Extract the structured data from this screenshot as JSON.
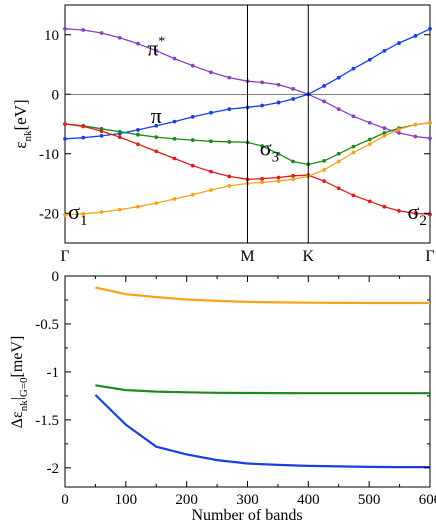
{
  "chart_data": [
    {
      "type": "line",
      "ylabel_main": "ε",
      "ylabel_sub": "nk",
      "ylabel_unit": "[eV]",
      "ylim": [
        -25,
        15
      ],
      "yticks": [
        10,
        0,
        -10,
        -20
      ],
      "grid": false,
      "kpoints": [
        {
          "label": "Γ",
          "x": 0.0
        },
        {
          "label": "M",
          "x": 1.0
        },
        {
          "label": "K",
          "x": 1.333
        },
        {
          "label": "Γ",
          "x": 2.0
        }
      ],
      "series": [
        {
          "name": "π*",
          "color": "#8e3fc1",
          "x": [
            0,
            0.1,
            0.2,
            0.3,
            0.4,
            0.5,
            0.6,
            0.7,
            0.8,
            0.9,
            1.0,
            1.08,
            1.17,
            1.25,
            1.333,
            1.42,
            1.5,
            1.58,
            1.67,
            1.75,
            1.83,
            1.92,
            2.0
          ],
          "y": [
            11,
            10.8,
            10.3,
            9.5,
            8.5,
            7.3,
            6.0,
            4.8,
            3.7,
            2.8,
            2.2,
            2.0,
            1.6,
            0.9,
            0.0,
            -1.2,
            -2.5,
            -3.7,
            -4.8,
            -5.7,
            -6.5,
            -7.1,
            -7.4
          ]
        },
        {
          "name": "π",
          "color": "#1a3fe0",
          "x": [
            0,
            0.1,
            0.2,
            0.3,
            0.4,
            0.5,
            0.6,
            0.7,
            0.8,
            0.9,
            1.0,
            1.08,
            1.17,
            1.25,
            1.333,
            1.42,
            1.5,
            1.58,
            1.67,
            1.75,
            1.83,
            1.92,
            2.0
          ],
          "y": [
            -7.5,
            -7.3,
            -7.0,
            -6.6,
            -6.0,
            -5.3,
            -4.6,
            -3.8,
            -3.1,
            -2.5,
            -2.2,
            -1.9,
            -1.4,
            -0.8,
            0.0,
            1.4,
            2.8,
            4.3,
            5.8,
            7.3,
            8.6,
            9.8,
            11.0
          ]
        },
        {
          "name": "σ3",
          "color": "#1e8a1e",
          "x": [
            0,
            0.1,
            0.2,
            0.3,
            0.4,
            0.5,
            0.6,
            0.7,
            0.8,
            0.9,
            1.0,
            1.08,
            1.17,
            1.25,
            1.333,
            1.42,
            1.5,
            1.58,
            1.67,
            1.75,
            1.83,
            1.92,
            2.0
          ],
          "y": [
            -5.0,
            -5.3,
            -5.8,
            -6.3,
            -6.8,
            -7.2,
            -7.5,
            -7.7,
            -7.9,
            -8.0,
            -8.1,
            -8.7,
            -10.0,
            -11.3,
            -11.8,
            -11.2,
            -10.0,
            -8.8,
            -7.6,
            -6.5,
            -5.7,
            -5.1,
            -4.8
          ]
        },
        {
          "name": "red band",
          "color": "#e01b1b",
          "x": [
            0,
            0.1,
            0.2,
            0.3,
            0.4,
            0.5,
            0.6,
            0.7,
            0.8,
            0.9,
            1.0,
            1.08,
            1.17,
            1.25,
            1.333,
            1.42,
            1.5,
            1.58,
            1.67,
            1.75,
            1.83,
            1.92,
            2.0
          ],
          "y": [
            -5.0,
            -5.4,
            -6.2,
            -7.2,
            -8.4,
            -9.6,
            -10.8,
            -12.0,
            -13.0,
            -13.8,
            -14.3,
            -14.2,
            -14.0,
            -13.7,
            -13.6,
            -14.6,
            -15.8,
            -17.0,
            -18.0,
            -18.9,
            -19.6,
            -20.0,
            -20.2
          ]
        },
        {
          "name": "σ1",
          "color": "#f7a21b",
          "x": [
            0,
            0.1,
            0.2,
            0.3,
            0.4,
            0.5,
            0.6,
            0.7,
            0.8,
            0.9,
            1.0,
            1.08,
            1.17,
            1.25,
            1.333,
            1.42,
            1.5,
            1.58,
            1.67,
            1.75,
            1.83,
            1.92,
            2.0
          ],
          "y": [
            -20.3,
            -20.1,
            -19.8,
            -19.4,
            -18.9,
            -18.3,
            -17.6,
            -16.9,
            -16.1,
            -15.4,
            -15.0,
            -14.8,
            -14.6,
            -14.3,
            -13.8,
            -12.7,
            -11.3,
            -9.8,
            -8.4,
            -7.0,
            -5.9,
            -5.1,
            -4.8
          ]
        }
      ],
      "annotations": [
        {
          "text": "π",
          "sup": "*",
          "x": 0.5,
          "y": 6.5
        },
        {
          "text": "π",
          "sup": "",
          "x": 0.5,
          "y": -4.8
        },
        {
          "text": "σ",
          "sub": "3",
          "x": 1.12,
          "y": -10.3
        },
        {
          "text": "σ",
          "sub": "1",
          "x": 0.07,
          "y": -21.0
        },
        {
          "text": "σ",
          "sub": "2",
          "x": 1.93,
          "y": -21.0
        }
      ]
    },
    {
      "type": "line",
      "xlabel": "Number of bands",
      "ylabel_main": "Δε",
      "ylabel_sub": "nk",
      "ylabel_bar_sub": "G=0",
      "ylabel_unit": "[meV]",
      "xlim": [
        0,
        600
      ],
      "ylim": [
        -2.2,
        0
      ],
      "xticks": [
        0,
        100,
        200,
        300,
        400,
        500,
        600
      ],
      "yticks": [
        0,
        -0.5,
        -1,
        -1.5,
        -2
      ],
      "ytick_labels": [
        "0",
        "-0.5",
        "-1",
        "-1.5",
        "-2"
      ],
      "grid": false,
      "series": [
        {
          "color": "#f7a21b",
          "x": [
            50,
            100,
            150,
            200,
            250,
            300,
            350,
            400,
            450,
            500,
            550,
            600
          ],
          "y": [
            -0.12,
            -0.19,
            -0.22,
            -0.245,
            -0.26,
            -0.27,
            -0.275,
            -0.278,
            -0.28,
            -0.281,
            -0.282,
            -0.282
          ]
        },
        {
          "color": "#1e8a1e",
          "x": [
            50,
            100,
            150,
            200,
            250,
            300,
            350,
            400,
            450,
            500,
            550,
            600
          ],
          "y": [
            -1.14,
            -1.19,
            -1.205,
            -1.213,
            -1.218,
            -1.22,
            -1.221,
            -1.222,
            -1.222,
            -1.222,
            -1.222,
            -1.222
          ]
        },
        {
          "color": "#1a3fe0",
          "x": [
            50,
            100,
            150,
            200,
            250,
            300,
            350,
            400,
            450,
            500,
            550,
            600
          ],
          "y": [
            -1.24,
            -1.55,
            -1.78,
            -1.86,
            -1.92,
            -1.955,
            -1.97,
            -1.98,
            -1.985,
            -1.99,
            -1.992,
            -1.993
          ]
        }
      ]
    }
  ]
}
